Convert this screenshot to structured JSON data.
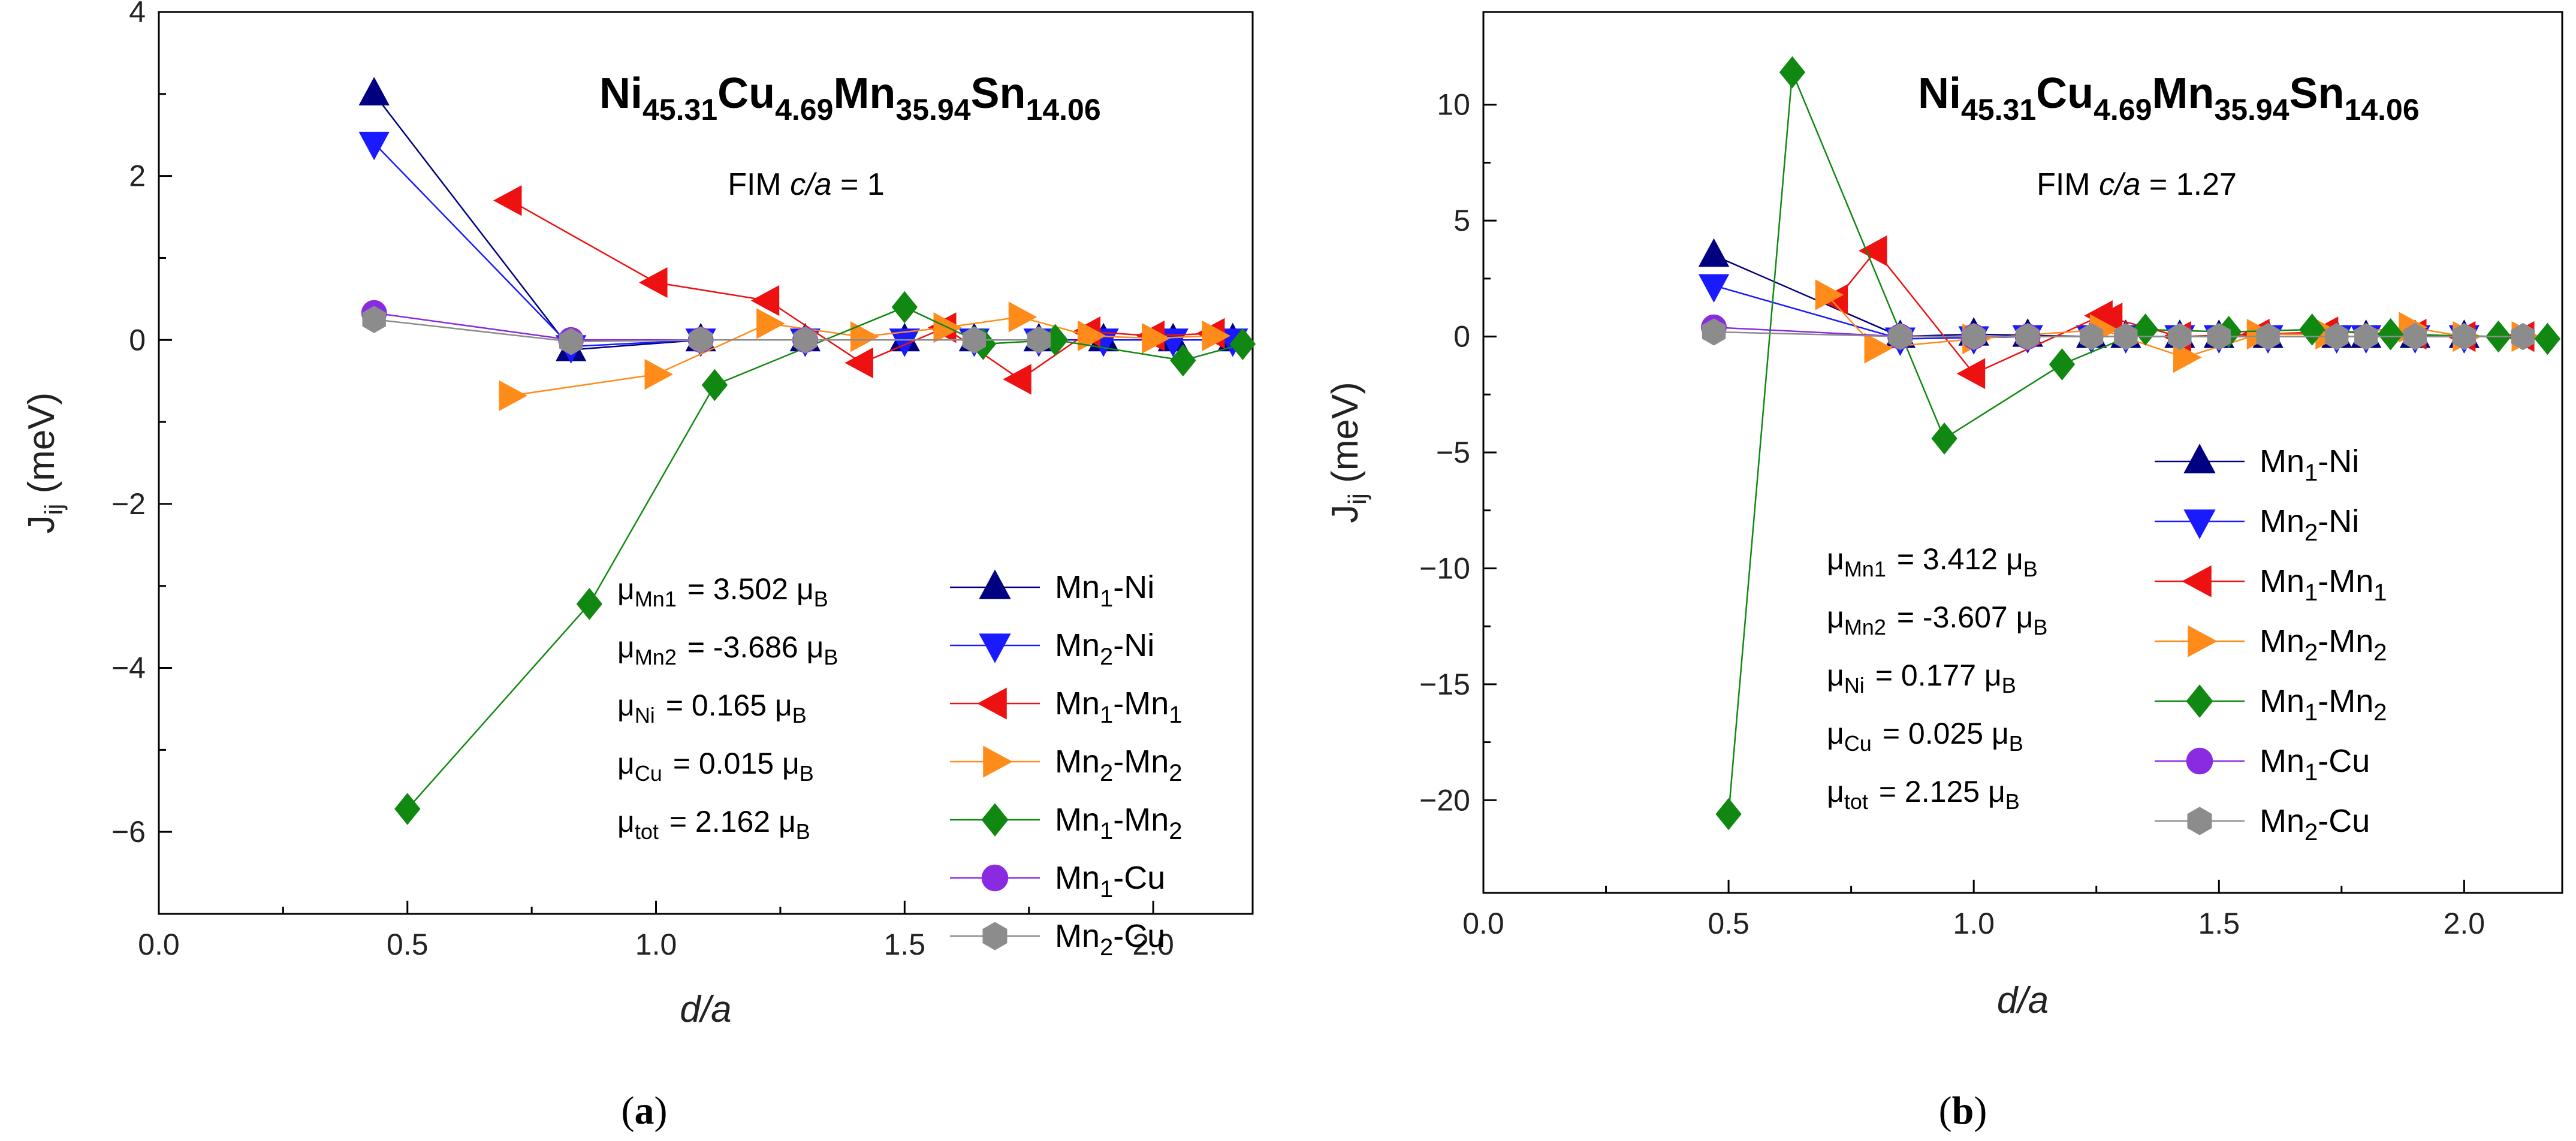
{
  "chart_data": [
    {
      "type": "line",
      "panel_label_open": "(",
      "panel_label_letter": "a",
      "panel_label_close": ")",
      "title_parts": [
        "Ni",
        "45.31",
        "Cu",
        "4.69",
        "Mn",
        "35.94",
        "Sn",
        "14.06"
      ],
      "subtitle_prefix": "FIM ",
      "subtitle_italic": "c/a",
      "subtitle_suffix": " = 1",
      "xlabel": "d/a",
      "ylabel_main": "J",
      "ylabel_sub": "ij",
      "ylabel_rest": " (meV)",
      "xlim": [
        0,
        2.2
      ],
      "ylim": [
        -7,
        4
      ],
      "xticks": [
        0.0,
        0.5,
        1.0,
        1.5,
        2.0
      ],
      "xtick_labels": [
        "0.0",
        "0.5",
        "1.0",
        "1.5",
        "2.0"
      ],
      "yticks": [
        -6,
        -4,
        -2,
        0,
        2,
        4
      ],
      "ytick_labels": [
        "−6",
        "−4",
        "−2",
        "0",
        "2",
        "4"
      ],
      "legend_position": "lower-right",
      "moments": [
        {
          "sym": "μ",
          "sub": "Mn1",
          "value": "=  3.502 μ",
          "unit_sub": "B"
        },
        {
          "sym": "μ",
          "sub": "Mn2",
          "value": "= -3.686 μ",
          "unit_sub": "B"
        },
        {
          "sym": "μ",
          "sub": "Ni",
          "value": "=  0.165 μ",
          "unit_sub": "B"
        },
        {
          "sym": "μ",
          "sub": "Cu",
          "value": "=  0.015 μ",
          "unit_sub": "B"
        },
        {
          "sym": "μ",
          "sub": "tot",
          "value": "=  2.162 μ",
          "unit_sub": "B"
        }
      ],
      "series": [
        {
          "name_parts": [
            "Mn",
            "1",
            "-Ni",
            ""
          ],
          "color": "#000080",
          "marker": "triangle-up",
          "x": [
            0.433,
            0.829,
            1.09,
            1.3,
            1.5,
            1.64,
            1.77,
            1.9,
            2.04,
            2.16
          ],
          "y": [
            3.0,
            -0.12,
            0.0,
            0.0,
            0.0,
            0.0,
            0.0,
            0.0,
            0.0,
            0.0
          ]
        },
        {
          "name_parts": [
            "Mn",
            "2",
            "-Ni",
            ""
          ],
          "color": "#1a1aff",
          "marker": "triangle-down",
          "x": [
            0.433,
            0.829,
            1.09,
            1.3,
            1.5,
            1.64,
            1.77,
            1.9,
            2.04,
            2.16
          ],
          "y": [
            2.4,
            -0.08,
            0.0,
            0.0,
            0.0,
            0.0,
            0.0,
            0.0,
            0.0,
            0.0
          ]
        },
        {
          "name_parts": [
            "Mn",
            "1",
            "-Mn",
            "1"
          ],
          "color": "#ee1111",
          "marker": "triangle-left",
          "x": [
            0.707,
            1.0,
            1.225,
            1.414,
            1.581,
            1.732,
            1.871,
            2.0,
            2.121
          ],
          "y": [
            1.7,
            0.7,
            0.48,
            -0.28,
            0.15,
            -0.48,
            0.1,
            0.05,
            0.08
          ]
        },
        {
          "name_parts": [
            "Mn",
            "2",
            "-Mn",
            "2"
          ],
          "color": "#ff8c1a",
          "marker": "triangle-right",
          "x": [
            0.707,
            1.0,
            1.225,
            1.414,
            1.581,
            1.732,
            1.871,
            2.0,
            2.121
          ],
          "y": [
            -0.68,
            -0.42,
            0.2,
            0.04,
            0.15,
            0.28,
            0.05,
            0.02,
            0.05
          ]
        },
        {
          "name_parts": [
            "Mn",
            "1",
            "-Mn",
            "2"
          ],
          "color": "#118811",
          "marker": "diamond",
          "x": [
            0.5,
            0.866,
            1.118,
            1.5,
            1.658,
            1.803,
            2.06,
            2.18
          ],
          "y": [
            -5.72,
            -3.22,
            -0.55,
            0.4,
            -0.05,
            0.0,
            -0.25,
            -0.05
          ]
        },
        {
          "name_parts": [
            "Mn",
            "1",
            "-Cu",
            ""
          ],
          "color": "#8a2be2",
          "marker": "circle",
          "x": [
            0.433,
            0.829,
            1.09,
            1.3
          ],
          "y": [
            0.33,
            0.0,
            0.0,
            0.0
          ]
        },
        {
          "name_parts": [
            "Mn",
            "2",
            "-Cu",
            ""
          ],
          "color": "#8c8c8c",
          "marker": "hexagon",
          "x": [
            0.433,
            0.829,
            1.09,
            1.3,
            1.64,
            1.77
          ],
          "y": [
            0.25,
            -0.02,
            0.0,
            0.0,
            0.0,
            0.0
          ]
        }
      ]
    },
    {
      "type": "line",
      "panel_label_open": "(",
      "panel_label_letter": "b",
      "panel_label_close": ")",
      "title_parts": [
        "Ni",
        "45.31",
        "Cu",
        "4.69",
        "Mn",
        "35.94",
        "Sn",
        "14.06"
      ],
      "subtitle_prefix": "FIM ",
      "subtitle_italic": "c/a",
      "subtitle_suffix": " = 1.27",
      "xlabel": "d/a",
      "ylabel_main": "J",
      "ylabel_sub": "ij",
      "ylabel_rest": " (meV)",
      "xlim": [
        0,
        2.2
      ],
      "ylim": [
        -24,
        14
      ],
      "xticks": [
        0.0,
        0.5,
        1.0,
        1.5,
        2.0
      ],
      "xtick_labels": [
        "0.0",
        "0.5",
        "1.0",
        "1.5",
        "2.0"
      ],
      "yticks": [
        -20,
        -15,
        -10,
        -5,
        0,
        5,
        10
      ],
      "ytick_labels": [
        "−20",
        "−15",
        "−10",
        "−5",
        "0",
        "5",
        "10"
      ],
      "legend_position": "lower-right",
      "moments": [
        {
          "sym": "μ",
          "sub": "Mn1",
          "value": "=  3.412 μ",
          "unit_sub": "B"
        },
        {
          "sym": "μ",
          "sub": "Mn2",
          "value": "= -3.607 μ",
          "unit_sub": "B"
        },
        {
          "sym": "μ",
          "sub": "Ni",
          "value": "=  0.177 μ",
          "unit_sub": "B"
        },
        {
          "sym": "μ",
          "sub": "Cu",
          "value": "=  0.025 μ",
          "unit_sub": "B"
        },
        {
          "sym": "μ",
          "sub": "tot",
          "value": "=  2.125 μ",
          "unit_sub": "B"
        }
      ],
      "series": [
        {
          "name_parts": [
            "Mn",
            "1",
            "-Ni",
            ""
          ],
          "color": "#000080",
          "marker": "triangle-up",
          "x": [
            0.47,
            0.85,
            1.0,
            1.11,
            1.24,
            1.31,
            1.42,
            1.5,
            1.6,
            1.74,
            1.8,
            1.9,
            2.0
          ],
          "y": [
            3.5,
            0.0,
            0.1,
            0.05,
            0.0,
            0.0,
            0.0,
            0.0,
            0.0,
            0.0,
            0.0,
            0.0,
            0.0
          ]
        },
        {
          "name_parts": [
            "Mn",
            "2",
            "-Ni",
            ""
          ],
          "color": "#1a1aff",
          "marker": "triangle-down",
          "x": [
            0.47,
            0.85,
            1.0,
            1.11,
            1.24,
            1.31,
            1.42,
            1.5,
            1.6,
            1.74,
            1.8,
            1.9,
            2.0
          ],
          "y": [
            2.2,
            -0.1,
            -0.05,
            0.0,
            0.0,
            0.0,
            0.0,
            0.0,
            0.0,
            0.0,
            0.0,
            0.0,
            0.0
          ]
        },
        {
          "name_parts": [
            "Mn",
            "1",
            "-Mn",
            "1"
          ],
          "color": "#ee1111",
          "marker": "triangle-left",
          "x": [
            0.72,
            0.8,
            1.0,
            1.26,
            1.28,
            1.42,
            1.58,
            1.72,
            1.9,
            2.0,
            2.12
          ],
          "y": [
            1.6,
            3.7,
            -1.6,
            0.9,
            0.8,
            0.0,
            0.1,
            0.2,
            0.1,
            0.0,
            0.0
          ]
        },
        {
          "name_parts": [
            "Mn",
            "2",
            "-Mn",
            "2"
          ],
          "color": "#ff8c1a",
          "marker": "triangle-right",
          "x": [
            0.7,
            0.8,
            1.0,
            1.26,
            1.43,
            1.58,
            1.72,
            1.89,
            2.0,
            2.12
          ],
          "y": [
            1.8,
            -0.5,
            -0.1,
            0.3,
            -0.9,
            0.1,
            0.1,
            0.4,
            0.0,
            0.0
          ]
        },
        {
          "name_parts": [
            "Mn",
            "1",
            "-Mn",
            "2"
          ],
          "color": "#118811",
          "marker": "diamond",
          "x": [
            0.5,
            0.63,
            0.94,
            1.18,
            1.35,
            1.52,
            1.69,
            1.85,
            2.07,
            2.17
          ],
          "y": [
            -20.6,
            11.4,
            -4.4,
            -1.2,
            0.3,
            0.2,
            0.3,
            0.1,
            0.0,
            -0.1
          ]
        },
        {
          "name_parts": [
            "Mn",
            "1",
            "-Cu",
            ""
          ],
          "color": "#8a2be2",
          "marker": "circle",
          "x": [
            0.47,
            0.85,
            1.0,
            1.11
          ],
          "y": [
            0.4,
            0.0,
            0.0,
            0.0
          ]
        },
        {
          "name_parts": [
            "Mn",
            "2",
            "-Cu",
            ""
          ],
          "color": "#8c8c8c",
          "marker": "hexagon",
          "x": [
            0.47,
            0.85,
            1.0,
            1.11,
            1.24,
            1.31,
            1.42,
            1.5,
            1.6,
            1.74,
            1.8,
            1.9,
            2.0,
            2.12
          ],
          "y": [
            0.2,
            0.0,
            0.0,
            0.0,
            0.0,
            0.0,
            0.0,
            0.0,
            0.0,
            0.0,
            0.0,
            0.0,
            0.0,
            0.0
          ]
        }
      ]
    }
  ]
}
